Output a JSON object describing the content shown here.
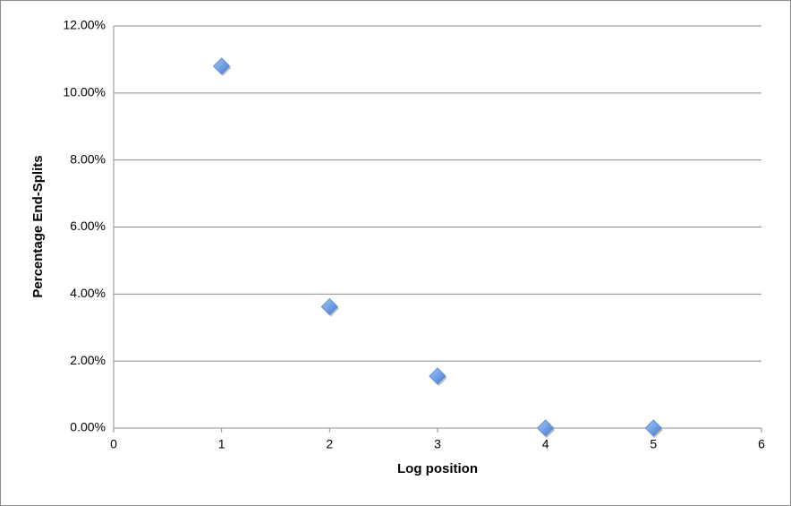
{
  "chart_data": {
    "type": "scatter",
    "x_label": "Log position",
    "y_label": "Percentage End-Splits",
    "series": [
      {
        "color": "#5b8fd8",
        "x": [
          1,
          2,
          3,
          4,
          5
        ],
        "values": [
          10.8,
          3.62,
          1.55,
          0,
          0
        ]
      }
    ],
    "xlim": [
      0,
      6
    ],
    "xticks": [
      0,
      1,
      2,
      3,
      4,
      5,
      6
    ],
    "ylim": [
      0,
      12
    ],
    "yticks": [
      {
        "value": 0,
        "label": "0.00%"
      },
      {
        "value": 2,
        "label": "2.00%"
      },
      {
        "value": 4,
        "label": "4.00%"
      },
      {
        "value": 6,
        "label": "6.00%"
      },
      {
        "value": 8,
        "label": "8.00%"
      },
      {
        "value": 10,
        "label": "10.00%"
      },
      {
        "value": 12,
        "label": "12.00%"
      }
    ],
    "grid": true
  }
}
